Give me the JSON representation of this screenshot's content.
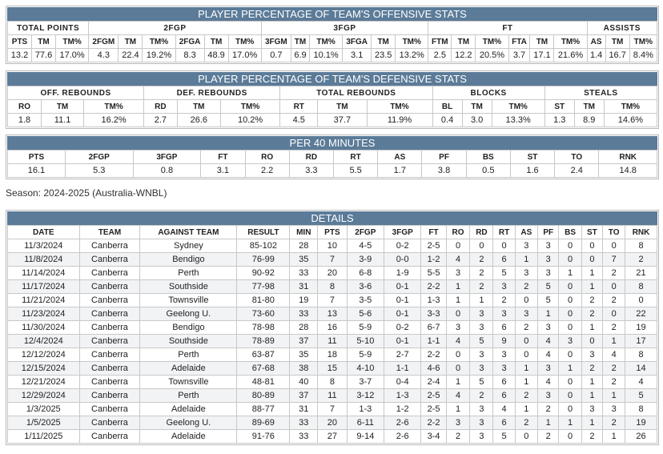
{
  "offensive": {
    "title": "PLAYER PERCENTAGE OF TEAM'S OFFENSIVE STATS",
    "groups": [
      {
        "label": "TOTAL POINTS",
        "columns": [
          "PTS",
          "TM",
          "TM%"
        ],
        "values": [
          "13.2",
          "77.6",
          "17.0%"
        ]
      },
      {
        "label": "2FGP",
        "columns": [
          "2FGM",
          "TM",
          "TM%",
          "2FGA",
          "TM",
          "TM%"
        ],
        "values": [
          "4.3",
          "22.4",
          "19.2%",
          "8.3",
          "48.9",
          "17.0%"
        ]
      },
      {
        "label": "3FGP",
        "columns": [
          "3FGM",
          "TM",
          "TM%",
          "3FGA",
          "TM",
          "TM%"
        ],
        "values": [
          "0.7",
          "6.9",
          "10.1%",
          "3.1",
          "23.5",
          "13.2%"
        ]
      },
      {
        "label": "FT",
        "columns": [
          "FTM",
          "TM",
          "TM%",
          "FTA",
          "TM",
          "TM%"
        ],
        "values": [
          "2.5",
          "12.2",
          "20.5%",
          "3.7",
          "17.1",
          "21.6%"
        ]
      },
      {
        "label": "ASSISTS",
        "columns": [
          "AS",
          "TM",
          "TM%"
        ],
        "values": [
          "1.4",
          "16.7",
          "8.4%"
        ]
      }
    ]
  },
  "defensive": {
    "title": "PLAYER PERCENTAGE OF TEAM'S DEFENSIVE STATS",
    "groups": [
      {
        "label": "OFF. REBOUNDS",
        "columns": [
          "RO",
          "TM",
          "TM%"
        ],
        "values": [
          "1.8",
          "11.1",
          "16.2%"
        ]
      },
      {
        "label": "DEF. REBOUNDS",
        "columns": [
          "RD",
          "TM",
          "TM%"
        ],
        "values": [
          "2.7",
          "26.6",
          "10.2%"
        ]
      },
      {
        "label": "TOTAL REBOUNDS",
        "columns": [
          "RT",
          "TM",
          "TM%"
        ],
        "values": [
          "4.5",
          "37.7",
          "11.9%"
        ]
      },
      {
        "label": "BLOCKS",
        "columns": [
          "BL",
          "TM",
          "TM%"
        ],
        "values": [
          "0.4",
          "3.0",
          "13.3%"
        ]
      },
      {
        "label": "STEALS",
        "columns": [
          "ST",
          "TM",
          "TM%"
        ],
        "values": [
          "1.3",
          "8.9",
          "14.6%"
        ]
      }
    ]
  },
  "per40": {
    "title": "PER 40 MINUTES",
    "columns": [
      "PTS",
      "2FGP",
      "3FGP",
      "FT",
      "RO",
      "RD",
      "RT",
      "AS",
      "PF",
      "BS",
      "ST",
      "TO",
      "RNK"
    ],
    "values": [
      "16.1",
      "5.3",
      "0.8",
      "3.1",
      "2.2",
      "3.3",
      "5.5",
      "1.7",
      "3.8",
      "0.5",
      "1.6",
      "2.4",
      "14.8"
    ]
  },
  "season": "Season: 2024-2025 (Australia-WNBL)",
  "details": {
    "title": "DETAILS",
    "columns": [
      "DATE",
      "TEAM",
      "AGAINST TEAM",
      "RESULT",
      "MIN",
      "PTS",
      "2FGP",
      "3FGP",
      "FT",
      "RO",
      "RD",
      "RT",
      "AS",
      "PF",
      "BS",
      "ST",
      "TO",
      "RNK"
    ],
    "rows": [
      [
        "11/3/2024",
        "Canberra",
        "Sydney",
        "85-102",
        "28",
        "10",
        "4-5",
        "0-2",
        "2-5",
        "0",
        "0",
        "0",
        "3",
        "3",
        "0",
        "0",
        "0",
        "8"
      ],
      [
        "11/8/2024",
        "Canberra",
        "Bendigo",
        "76-99",
        "35",
        "7",
        "3-9",
        "0-0",
        "1-2",
        "4",
        "2",
        "6",
        "1",
        "3",
        "0",
        "0",
        "7",
        "2"
      ],
      [
        "11/14/2024",
        "Canberra",
        "Perth",
        "90-92",
        "33",
        "20",
        "6-8",
        "1-9",
        "5-5",
        "3",
        "2",
        "5",
        "3",
        "3",
        "1",
        "1",
        "2",
        "21"
      ],
      [
        "11/17/2024",
        "Canberra",
        "Southside",
        "77-98",
        "31",
        "8",
        "3-6",
        "0-1",
        "2-2",
        "1",
        "2",
        "3",
        "2",
        "5",
        "0",
        "1",
        "0",
        "8"
      ],
      [
        "11/21/2024",
        "Canberra",
        "Townsville",
        "81-80",
        "19",
        "7",
        "3-5",
        "0-1",
        "1-3",
        "1",
        "1",
        "2",
        "0",
        "5",
        "0",
        "2",
        "2",
        "0"
      ],
      [
        "11/23/2024",
        "Canberra",
        "Geelong U.",
        "73-60",
        "33",
        "13",
        "5-6",
        "0-1",
        "3-3",
        "0",
        "3",
        "3",
        "3",
        "1",
        "0",
        "2",
        "0",
        "22"
      ],
      [
        "11/30/2024",
        "Canberra",
        "Bendigo",
        "78-98",
        "28",
        "16",
        "5-9",
        "0-2",
        "6-7",
        "3",
        "3",
        "6",
        "2",
        "3",
        "0",
        "1",
        "2",
        "19"
      ],
      [
        "12/4/2024",
        "Canberra",
        "Southside",
        "78-89",
        "37",
        "11",
        "5-10",
        "0-1",
        "1-1",
        "4",
        "5",
        "9",
        "0",
        "4",
        "3",
        "0",
        "1",
        "17"
      ],
      [
        "12/12/2024",
        "Canberra",
        "Perth",
        "63-87",
        "35",
        "18",
        "5-9",
        "2-7",
        "2-2",
        "0",
        "3",
        "3",
        "0",
        "4",
        "0",
        "3",
        "4",
        "8"
      ],
      [
        "12/15/2024",
        "Canberra",
        "Adelaide",
        "67-68",
        "38",
        "15",
        "4-10",
        "1-1",
        "4-6",
        "0",
        "3",
        "3",
        "1",
        "3",
        "1",
        "2",
        "2",
        "14"
      ],
      [
        "12/21/2024",
        "Canberra",
        "Townsville",
        "48-81",
        "40",
        "8",
        "3-7",
        "0-4",
        "2-4",
        "1",
        "5",
        "6",
        "1",
        "4",
        "0",
        "1",
        "2",
        "4"
      ],
      [
        "12/29/2024",
        "Canberra",
        "Perth",
        "80-89",
        "37",
        "11",
        "3-12",
        "1-3",
        "2-5",
        "4",
        "2",
        "6",
        "2",
        "3",
        "0",
        "1",
        "1",
        "5"
      ],
      [
        "1/3/2025",
        "Canberra",
        "Adelaide",
        "88-77",
        "31",
        "7",
        "1-3",
        "1-2",
        "2-5",
        "1",
        "3",
        "4",
        "1",
        "2",
        "0",
        "3",
        "3",
        "8"
      ],
      [
        "1/5/2025",
        "Canberra",
        "Geelong U.",
        "89-69",
        "33",
        "20",
        "6-11",
        "2-6",
        "2-2",
        "3",
        "3",
        "6",
        "2",
        "1",
        "1",
        "1",
        "2",
        "19"
      ],
      [
        "1/11/2025",
        "Canberra",
        "Adelaide",
        "91-76",
        "33",
        "27",
        "9-14",
        "2-6",
        "3-4",
        "2",
        "3",
        "5",
        "0",
        "2",
        "0",
        "2",
        "1",
        "26"
      ]
    ]
  }
}
